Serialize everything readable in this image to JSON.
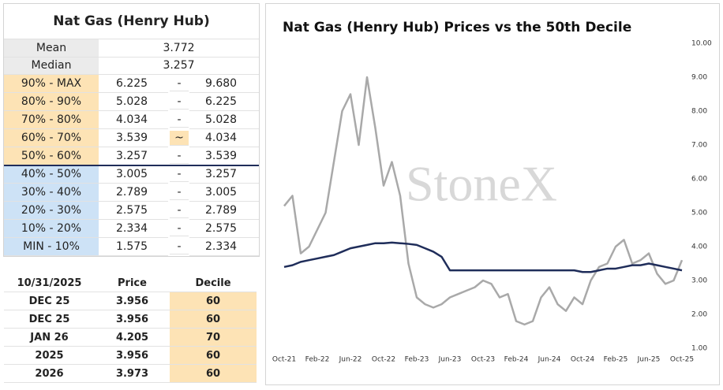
{
  "stats": {
    "title": "Nat Gas (Henry Hub)",
    "summary": [
      {
        "label": "Mean",
        "value": "3.772"
      },
      {
        "label": "Median",
        "value": "3.257"
      }
    ],
    "rows": [
      [
        "90% - MAX",
        "6.225",
        "-",
        "9.680"
      ],
      [
        "80% - 90%",
        "5.028",
        "-",
        "6.225"
      ],
      [
        "70% - 80%",
        "4.034",
        "-",
        "5.028"
      ],
      [
        "60% - 70%",
        "3.539",
        "~",
        "4.034"
      ],
      [
        "50% - 60%",
        "3.257",
        "-",
        "3.539"
      ],
      [
        "40% - 50%",
        "3.005",
        "-",
        "3.257"
      ],
      [
        "30% - 40%",
        "2.789",
        "-",
        "3.005"
      ],
      [
        "20% - 30%",
        "2.575",
        "-",
        "2.789"
      ],
      [
        "10% - 20%",
        "2.334",
        "-",
        "2.575"
      ],
      [
        "MIN - 10%",
        "1.575",
        "-",
        "2.334"
      ]
    ]
  },
  "quotes": {
    "header": [
      "10/31/2025",
      "Price",
      "Decile"
    ],
    "rows": [
      [
        "DEC 25",
        "3.956",
        "60"
      ],
      [
        "DEC 25",
        "3.956",
        "60"
      ],
      [
        "JAN 26",
        "4.205",
        "70"
      ],
      [
        "2025",
        "3.956",
        "60"
      ],
      [
        "2026",
        "3.973",
        "60"
      ]
    ]
  },
  "chart_data": {
    "type": "line",
    "title": "Nat Gas (Henry Hub) Prices vs the 50th Decile",
    "watermark": "StoneX",
    "categories": [
      "Oct-21",
      null,
      null,
      null,
      "Feb-22",
      null,
      null,
      null,
      "Jun-22",
      null,
      null,
      null,
      "Oct-22",
      null,
      null,
      null,
      "Feb-23",
      null,
      null,
      null,
      "Jun-23",
      null,
      null,
      null,
      "Oct-23",
      null,
      null,
      null,
      "Feb-24",
      null,
      null,
      null,
      "Jun-24",
      null,
      null,
      null,
      "Oct-24",
      null,
      null,
      null,
      "Feb-25",
      null,
      null,
      null,
      "Jun-25",
      null,
      null,
      null,
      "Oct-25"
    ],
    "series": [
      {
        "name": "Price",
        "color": "#a9a9a9",
        "values": [
          5.2,
          5.5,
          3.8,
          4.0,
          4.5,
          5.0,
          6.5,
          8.0,
          8.5,
          7.0,
          9.0,
          7.5,
          5.8,
          6.5,
          5.5,
          3.5,
          2.5,
          2.3,
          2.2,
          2.3,
          2.5,
          2.6,
          2.7,
          2.8,
          3.0,
          2.9,
          2.5,
          2.6,
          1.8,
          1.7,
          1.8,
          2.5,
          2.8,
          2.3,
          2.1,
          2.5,
          2.3,
          3.0,
          3.4,
          3.5,
          4.0,
          4.2,
          3.5,
          3.6,
          3.8,
          3.2,
          2.9,
          3.0,
          3.6
        ]
      },
      {
        "name": "50th Decile",
        "color": "#1f2d5a",
        "values": [
          3.4,
          3.45,
          3.55,
          3.6,
          3.65,
          3.7,
          3.75,
          3.85,
          3.95,
          4.0,
          4.05,
          4.1,
          4.1,
          4.12,
          4.1,
          4.08,
          4.05,
          3.95,
          3.85,
          3.7,
          3.3,
          3.3,
          3.3,
          3.3,
          3.3,
          3.3,
          3.3,
          3.3,
          3.3,
          3.3,
          3.3,
          3.3,
          3.3,
          3.3,
          3.3,
          3.3,
          3.25,
          3.25,
          3.3,
          3.35,
          3.35,
          3.4,
          3.45,
          3.45,
          3.5,
          3.45,
          3.4,
          3.35,
          3.3
        ]
      }
    ],
    "ylim": [
      1,
      10
    ],
    "yticks": [
      {
        "value": 1,
        "label": "1.00"
      },
      {
        "value": 2,
        "label": "2.00"
      },
      {
        "value": 3,
        "label": "3.00"
      },
      {
        "value": 4,
        "label": "4.00"
      },
      {
        "value": 5,
        "label": "5.00"
      },
      {
        "value": 6,
        "label": "6.00"
      },
      {
        "value": 7,
        "label": "7.00"
      },
      {
        "value": 8,
        "label": "8.00"
      },
      {
        "value": 9,
        "label": "9.00"
      },
      {
        "value": 10,
        "label": "10.00"
      }
    ]
  }
}
